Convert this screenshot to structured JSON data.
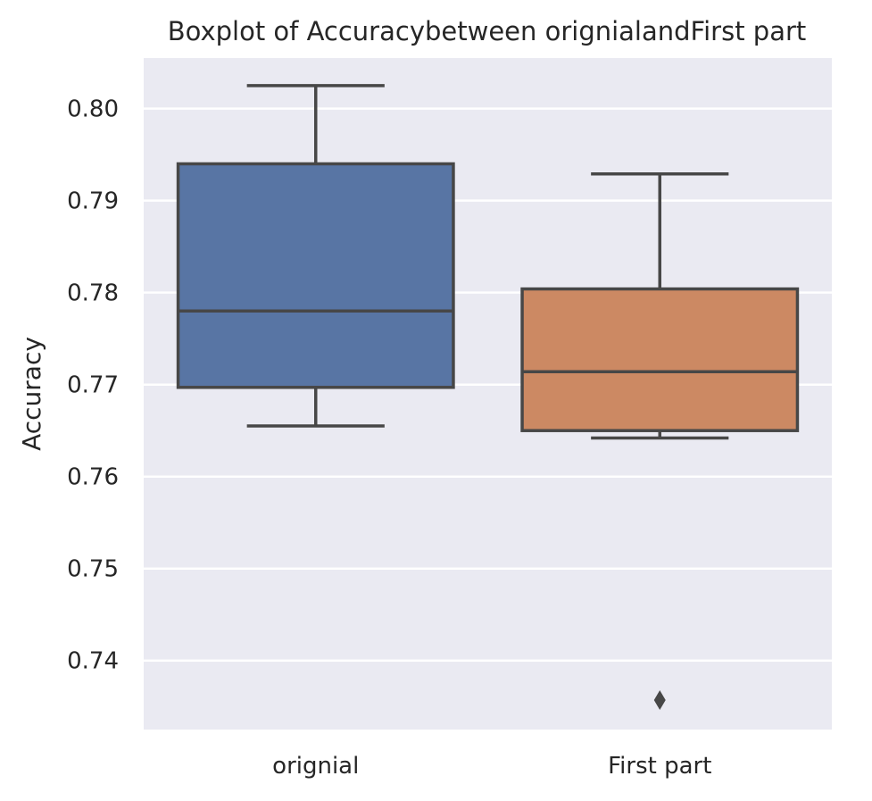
{
  "chart_data": {
    "type": "box",
    "title": "Boxplot of Accuracybetween orignialandFirst part",
    "xlabel": "",
    "ylabel": "Accuracy",
    "ylim": [
      0.7325,
      0.8055
    ],
    "yticks": [
      0.74,
      0.75,
      0.76,
      0.77,
      0.78,
      0.79,
      0.8
    ],
    "ytick_labels": [
      "0.74",
      "0.75",
      "0.76",
      "0.77",
      "0.78",
      "0.79",
      "0.80"
    ],
    "categories": [
      "orignial",
      "First part"
    ],
    "grid": true,
    "background_color": "#EAEAF2",
    "boxes": [
      {
        "category": "orignial",
        "whisker_low": 0.7655,
        "q1": 0.7697,
        "median": 0.778,
        "q3": 0.794,
        "whisker_high": 0.8025,
        "outliers": [],
        "color": "#5875A4"
      },
      {
        "category": "First part",
        "whisker_low": 0.7642,
        "q1": 0.765,
        "median": 0.7714,
        "q3": 0.7804,
        "whisker_high": 0.7929,
        "outliers": [
          0.7357
        ],
        "color": "#CC8963"
      }
    ]
  }
}
